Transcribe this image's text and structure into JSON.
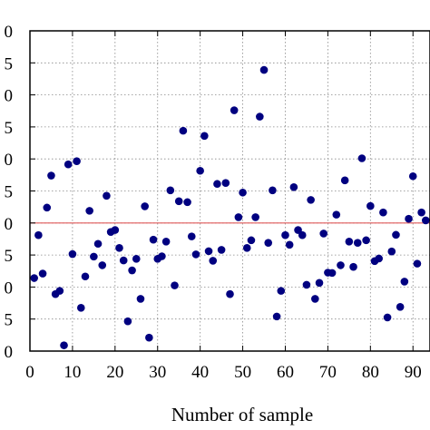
{
  "chart_data": {
    "type": "scatter",
    "title": "",
    "xlabel": "Number of sample",
    "ylabel": "",
    "xlim": [
      0,
      94
    ],
    "ylim": [
      0,
      10
    ],
    "x_ticks": [
      0,
      10,
      20,
      30,
      40,
      50,
      60,
      70,
      80,
      90
    ],
    "y_ticks": [
      {
        "value": 0,
        "label": "0"
      },
      {
        "value": 1,
        "label": "5"
      },
      {
        "value": 2,
        "label": "0"
      },
      {
        "value": 3,
        "label": "5"
      },
      {
        "value": 4,
        "label": "0"
      },
      {
        "value": 5,
        "label": "5"
      },
      {
        "value": 6,
        "label": "0"
      },
      {
        "value": 7,
        "label": "5"
      },
      {
        "value": 8,
        "label": "0"
      },
      {
        "value": 9,
        "label": "5"
      },
      {
        "value": 10,
        "label": "0"
      }
    ],
    "grid": true,
    "reference_line": {
      "y": 4.0,
      "color": "#e05a5a"
    },
    "marker_color": "#000080",
    "series": [
      {
        "points": [
          [
            1,
            2.28
          ],
          [
            2,
            3.62
          ],
          [
            3,
            2.42
          ],
          [
            4,
            4.48
          ],
          [
            5,
            5.48
          ],
          [
            6,
            1.78
          ],
          [
            7,
            1.88
          ],
          [
            8,
            0.18
          ],
          [
            9,
            5.83
          ],
          [
            10,
            3.03
          ],
          [
            11,
            5.93
          ],
          [
            12,
            1.35
          ],
          [
            13,
            2.33
          ],
          [
            14,
            4.38
          ],
          [
            15,
            2.95
          ],
          [
            16,
            3.35
          ],
          [
            17,
            2.68
          ],
          [
            18,
            4.85
          ],
          [
            19,
            3.72
          ],
          [
            20,
            3.78
          ],
          [
            21,
            3.22
          ],
          [
            22,
            2.83
          ],
          [
            23,
            0.93
          ],
          [
            24,
            2.52
          ],
          [
            25,
            2.88
          ],
          [
            26,
            1.63
          ],
          [
            27,
            4.52
          ],
          [
            28,
            0.42
          ],
          [
            29,
            3.48
          ],
          [
            30,
            2.88
          ],
          [
            31,
            2.96
          ],
          [
            32,
            3.42
          ],
          [
            33,
            5.02
          ],
          [
            34,
            2.05
          ],
          [
            35,
            4.68
          ],
          [
            36,
            6.88
          ],
          [
            37,
            4.65
          ],
          [
            38,
            3.58
          ],
          [
            39,
            3.02
          ],
          [
            40,
            5.63
          ],
          [
            41,
            6.72
          ],
          [
            42,
            3.12
          ],
          [
            43,
            2.82
          ],
          [
            44,
            5.22
          ],
          [
            45,
            3.16
          ],
          [
            46,
            5.25
          ],
          [
            47,
            1.78
          ],
          [
            48,
            7.52
          ],
          [
            49,
            4.18
          ],
          [
            50,
            4.95
          ],
          [
            51,
            3.22
          ],
          [
            52,
            3.46
          ],
          [
            53,
            4.18
          ],
          [
            54,
            7.32
          ],
          [
            55,
            8.78
          ],
          [
            56,
            3.38
          ],
          [
            57,
            5.02
          ],
          [
            58,
            1.08
          ],
          [
            59,
            1.88
          ],
          [
            60,
            3.62
          ],
          [
            61,
            3.32
          ],
          [
            62,
            5.12
          ],
          [
            63,
            3.78
          ],
          [
            64,
            3.62
          ],
          [
            65,
            2.07
          ],
          [
            66,
            4.72
          ],
          [
            67,
            1.63
          ],
          [
            68,
            2.13
          ],
          [
            69,
            3.67
          ],
          [
            70,
            2.45
          ],
          [
            71,
            2.44
          ],
          [
            72,
            4.26
          ],
          [
            73,
            2.68
          ],
          [
            74,
            5.33
          ],
          [
            75,
            3.42
          ],
          [
            76,
            2.63
          ],
          [
            77,
            3.38
          ],
          [
            78,
            6.02
          ],
          [
            79,
            3.46
          ],
          [
            80,
            4.53
          ],
          [
            81,
            2.81
          ],
          [
            82,
            2.89
          ],
          [
            83,
            4.33
          ],
          [
            84,
            1.05
          ],
          [
            85,
            3.11
          ],
          [
            86,
            3.63
          ],
          [
            87,
            1.38
          ],
          [
            88,
            2.17
          ],
          [
            89,
            4.13
          ],
          [
            90,
            5.46
          ],
          [
            91,
            2.73
          ],
          [
            92,
            4.33
          ],
          [
            93,
            4.08
          ]
        ]
      }
    ]
  }
}
